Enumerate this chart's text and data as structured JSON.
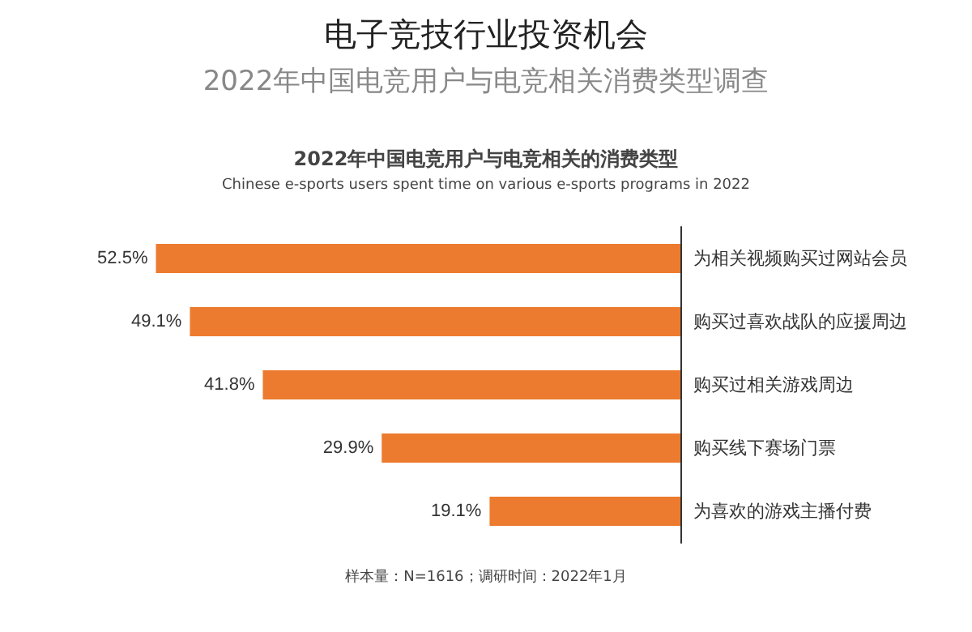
{
  "chart_data": {
    "type": "bar",
    "orientation": "horizontal",
    "title": "电子竞技行业投资机会",
    "subtitle": "2022年中国电竞用户与电竞相关消费类型调查",
    "annotations": [
      "2022年中国电竞用户与电竞相关的消费类型",
      "Chinese e-sports users spent time on various e-sports programs in 2022",
      "样本量：N=1616；调研时间：2022年1月"
    ],
    "categories": [
      "为相关视频购买过网站会员",
      "购买过喜欢战队的应援周边",
      "购买过相关游戏周边",
      "购买线下赛场门票",
      "为喜欢的游戏主播付费"
    ],
    "values": [
      52.5,
      49.1,
      41.8,
      29.9,
      19.1
    ],
    "value_labels": [
      "52.5%",
      "49.1%",
      "41.8%",
      "29.9%",
      "19.1%"
    ],
    "color": "#ec7b2f"
  }
}
